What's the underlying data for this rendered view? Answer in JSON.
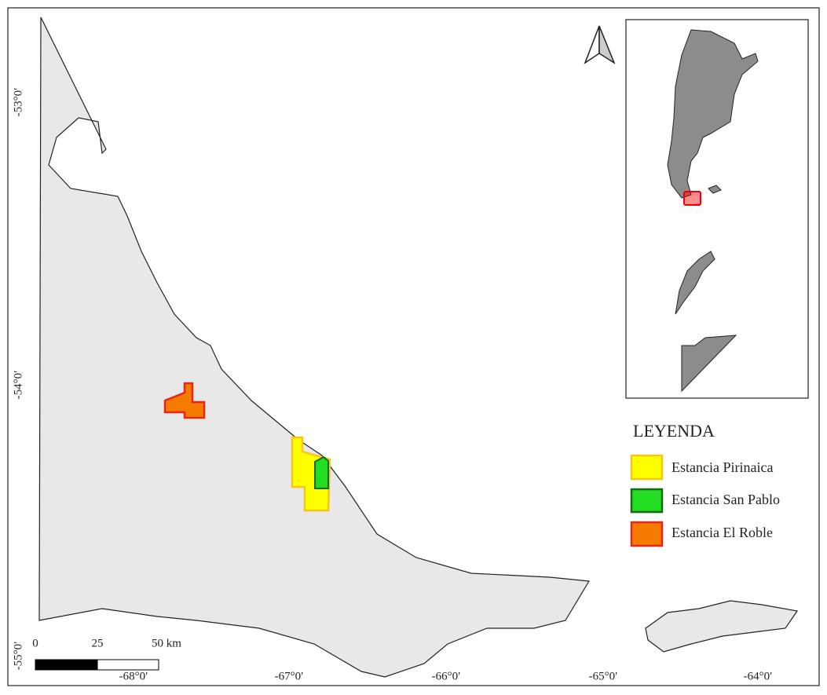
{
  "map": {
    "latitude_labels": [
      "-53°0′",
      "-54°0′",
      "-55°0′"
    ],
    "longitude_labels": [
      "-68°0′",
      "-67°0′",
      "-66°0′",
      "-65°0′",
      "-64°0′"
    ],
    "legend": {
      "title": "LEYENDA",
      "items": [
        "Estancia Pirinaica",
        "Estancia San Pablo",
        "Estancia El Roble"
      ]
    },
    "scale_bar": [
      "0",
      "25",
      "50 km"
    ]
  }
}
